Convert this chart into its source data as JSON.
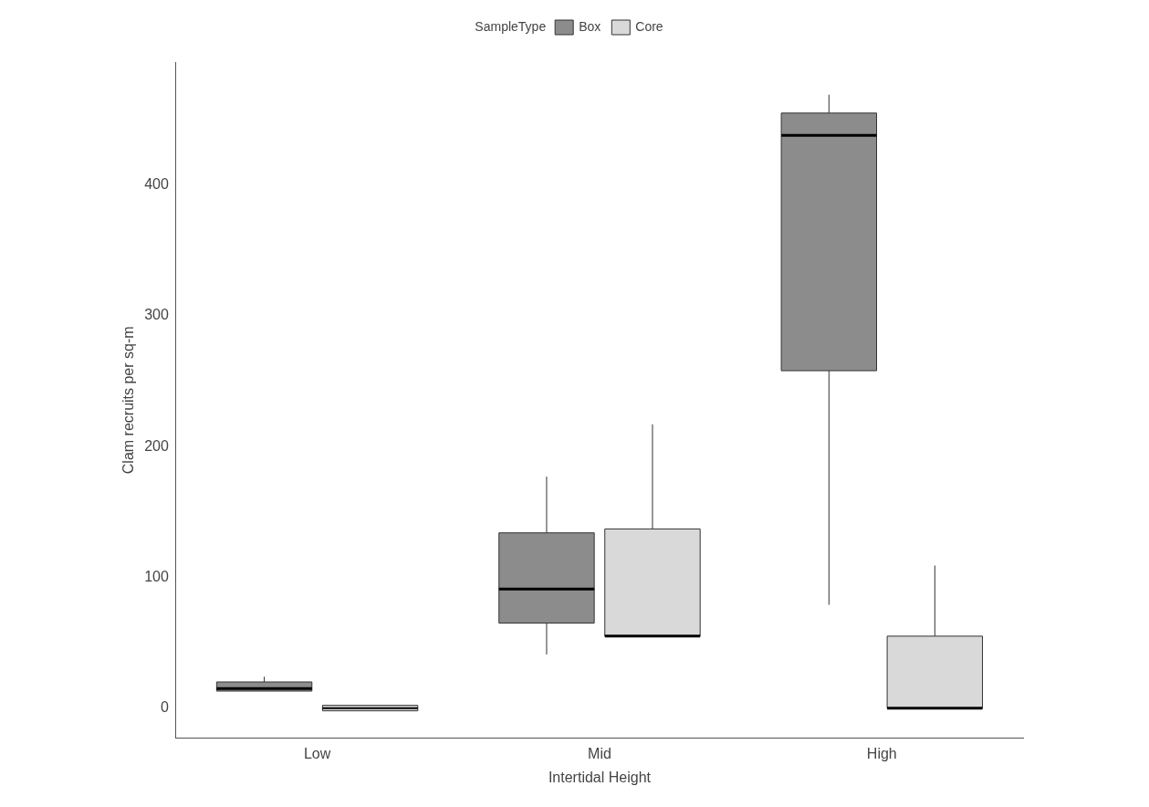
{
  "chart_data": {
    "type": "box",
    "legend_title": "SampleType",
    "legend": "top",
    "xlabel": "Intertidal Height",
    "ylabel": "Clam recruits per sq-m",
    "categories": [
      "Low",
      "Mid",
      "High"
    ],
    "ylim": [
      -23,
      494
    ],
    "yticks": [
      0,
      100,
      200,
      300,
      400
    ],
    "grid": false,
    "series": [
      {
        "name": "Box",
        "color": "#8c8c8c",
        "boxes": [
          {
            "low": 13,
            "q1": 13,
            "median": 15,
            "q3": 20,
            "high": 24
          },
          {
            "low": 41,
            "q1": 65,
            "median": 91,
            "q3": 134,
            "high": 177
          },
          {
            "low": 79,
            "q1": 258,
            "median": 438,
            "q3": 455,
            "high": 469
          }
        ]
      },
      {
        "name": "Core",
        "color": "#d9d9d9",
        "boxes": [
          {
            "low": 0,
            "q1": 0,
            "median": 0,
            "q3": 0,
            "high": 0
          },
          {
            "low": 55,
            "q1": 55,
            "median": 55,
            "q3": 137,
            "high": 217
          },
          {
            "low": 0,
            "q1": 0,
            "median": 0,
            "q3": 55,
            "high": 109
          }
        ]
      }
    ]
  }
}
